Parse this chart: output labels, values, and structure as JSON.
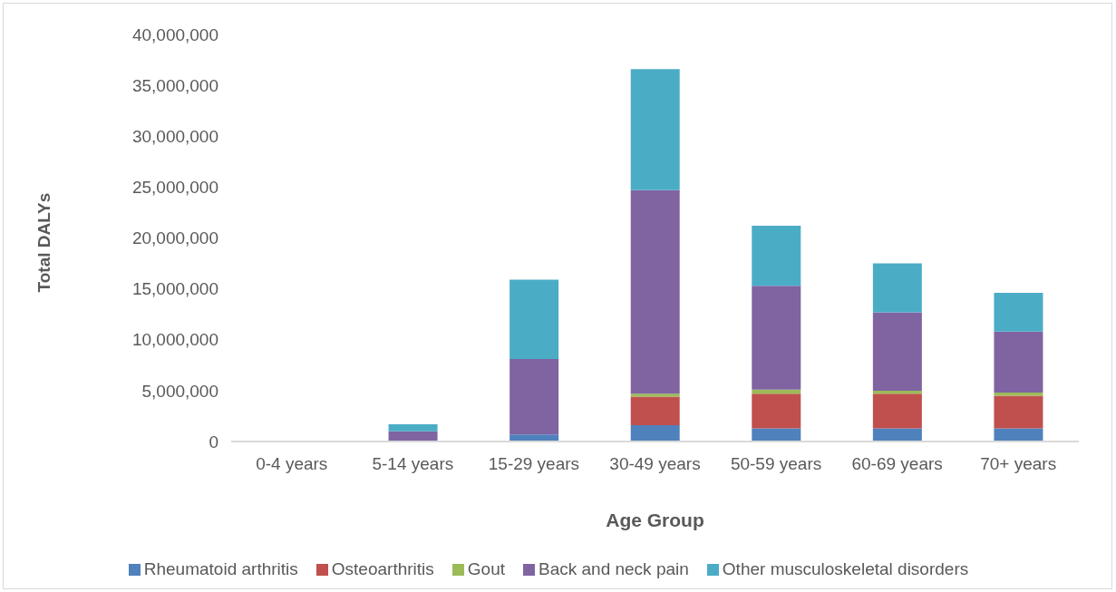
{
  "chart_data": {
    "type": "bar",
    "stacked": true,
    "xlabel": "Age Group",
    "ylabel": "Total DALYs",
    "legend": "bottom",
    "categories": [
      "0-4 years",
      "5-14 years",
      "15-29 years",
      "30-49 years",
      "50-59 years",
      "60-69 years",
      "70+ years"
    ],
    "ylim": [
      0,
      40000000
    ],
    "yticks": [
      {
        "value": 0,
        "label": "0"
      },
      {
        "value": 5000000,
        "label": "5,000,000"
      },
      {
        "value": 10000000,
        "label": "10,000,000"
      },
      {
        "value": 15000000,
        "label": "15,000,000"
      },
      {
        "value": 20000000,
        "label": "20,000,000"
      },
      {
        "value": 25000000,
        "label": "25,000,000"
      },
      {
        "value": 30000000,
        "label": "30,000,000"
      },
      {
        "value": 35000000,
        "label": "35,000,000"
      },
      {
        "value": 40000000,
        "label": "40,000,000"
      }
    ],
    "series": [
      {
        "name": "Rheumatoid arthritis",
        "color": "#4f81bd",
        "values": [
          0,
          100000,
          700000,
          1600000,
          1300000,
          1300000,
          1300000
        ]
      },
      {
        "name": "Osteoarthritis",
        "color": "#c0504d",
        "values": [
          0,
          0,
          null,
          2800000,
          3400000,
          3400000,
          3200000
        ]
      },
      {
        "name": "Gout",
        "color": "#9bbb59",
        "values": [
          0,
          0,
          null,
          300000,
          400000,
          300000,
          300000
        ]
      },
      {
        "name": "Back and neck pain",
        "color": "#8064a2",
        "values": [
          0,
          900000,
          7400000,
          20000000,
          10200000,
          7700000,
          6000000
        ]
      },
      {
        "name": "Other musculoskeletal disorders",
        "color": "#4bacc6",
        "values": [
          0,
          700000,
          7800000,
          11900000,
          5900000,
          4800000,
          3800000
        ]
      }
    ]
  }
}
